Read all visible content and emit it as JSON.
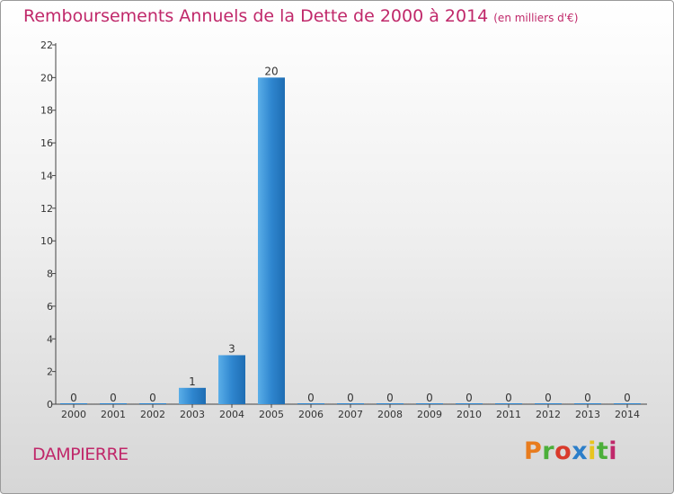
{
  "chart_data": {
    "type": "bar",
    "title": "Remboursements Annuels de la Dette de 2000 à 2014",
    "subtitle": "(en milliers d'€)",
    "categories": [
      "2000",
      "2001",
      "2002",
      "2003",
      "2004",
      "2005",
      "2006",
      "2007",
      "2008",
      "2009",
      "2010",
      "2011",
      "2012",
      "2013",
      "2014"
    ],
    "values": [
      0,
      0,
      0,
      1,
      3,
      20,
      0,
      0,
      0,
      0,
      0,
      0,
      0,
      0,
      0
    ],
    "yticks": [
      0,
      2,
      4,
      6,
      8,
      10,
      12,
      14,
      16,
      18,
      20,
      22
    ],
    "ylim": [
      0,
      22
    ],
    "xlabel": "",
    "ylabel": "",
    "bar_color": "#3a8fd4"
  },
  "location": "DAMPIERRE",
  "brand": {
    "letters": [
      "P",
      "r",
      "o",
      "x",
      "i",
      "t",
      "i"
    ],
    "colors": [
      "#e87c1e",
      "#4caf3a",
      "#d93a2b",
      "#2b7ec9",
      "#e8c41e",
      "#4caf3a",
      "#c0286a"
    ]
  }
}
